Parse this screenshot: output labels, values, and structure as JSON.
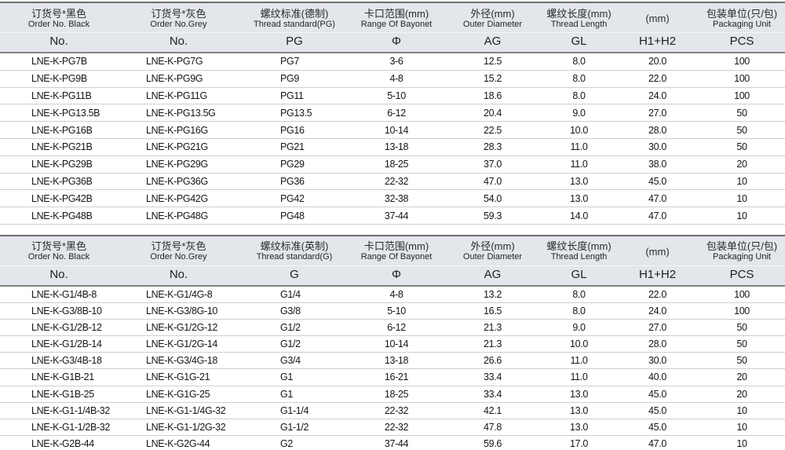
{
  "tables": [
    {
      "name": "pg-thread-table",
      "columns": [
        {
          "cn": "订货号*黑色",
          "en": "Order No. Black",
          "sym": "No."
        },
        {
          "cn": "订货号*灰色",
          "en": "Order No.Grey",
          "sym": "No."
        },
        {
          "cn": "螺纹标准(德制)",
          "en": "Thread standard(PG)",
          "sym": "PG"
        },
        {
          "cn": "卡口范围(mm)",
          "en": "Range Of Bayonet",
          "sym": "Φ"
        },
        {
          "cn": "外径(mm)",
          "en": "Outer Diameter",
          "sym": "AG"
        },
        {
          "cn": "螺纹长度(mm)",
          "en": "Thread Length",
          "sym": "GL"
        },
        {
          "cn": "(mm)",
          "en": "",
          "sym": "H1+H2"
        },
        {
          "cn": "包装单位(只/包)",
          "en": "Packaging Unit",
          "sym": "PCS"
        }
      ],
      "rows": [
        [
          "LNE-K-PG7B",
          "LNE-K-PG7G",
          "PG7",
          "3-6",
          "12.5",
          "8.0",
          "20.0",
          "100"
        ],
        [
          "LNE-K-PG9B",
          "LNE-K-PG9G",
          "PG9",
          "4-8",
          "15.2",
          "8.0",
          "22.0",
          "100"
        ],
        [
          "LNE-K-PG11B",
          "LNE-K-PG11G",
          "PG11",
          "5-10",
          "18.6",
          "8.0",
          "24.0",
          "100"
        ],
        [
          "LNE-K-PG13.5B",
          "LNE-K-PG13.5G",
          "PG13.5",
          "6-12",
          "20.4",
          "9.0",
          "27.0",
          "50"
        ],
        [
          "LNE-K-PG16B",
          "LNE-K-PG16G",
          "PG16",
          "10-14",
          "22.5",
          "10.0",
          "28.0",
          "50"
        ],
        [
          "LNE-K-PG21B",
          "LNE-K-PG21G",
          "PG21",
          "13-18",
          "28.3",
          "11.0",
          "30.0",
          "50"
        ],
        [
          "LNE-K-PG29B",
          "LNE-K-PG29G",
          "PG29",
          "18-25",
          "37.0",
          "11.0",
          "38.0",
          "20"
        ],
        [
          "LNE-K-PG36B",
          "LNE-K-PG36G",
          "PG36",
          "22-32",
          "47.0",
          "13.0",
          "45.0",
          "10"
        ],
        [
          "LNE-K-PG42B",
          "LNE-K-PG42G",
          "PG42",
          "32-38",
          "54.0",
          "13.0",
          "47.0",
          "10"
        ],
        [
          "LNE-K-PG48B",
          "LNE-K-PG48G",
          "PG48",
          "37-44",
          "59.3",
          "14.0",
          "47.0",
          "10"
        ]
      ]
    },
    {
      "name": "g-thread-table",
      "columns": [
        {
          "cn": "订货号*黑色",
          "en": "Order No. Black",
          "sym": "No."
        },
        {
          "cn": "订货号*灰色",
          "en": "Order No.Grey",
          "sym": "No."
        },
        {
          "cn": "螺纹标准(英制)",
          "en": "Thread standard(G)",
          "sym": "G"
        },
        {
          "cn": "卡口范围(mm)",
          "en": "Range Of Bayonet",
          "sym": "Φ"
        },
        {
          "cn": "外径(mm)",
          "en": "Outer Diameter",
          "sym": "AG"
        },
        {
          "cn": "螺纹长度(mm)",
          "en": "Thread Length",
          "sym": "GL"
        },
        {
          "cn": "(mm)",
          "en": "",
          "sym": "H1+H2"
        },
        {
          "cn": "包装单位(只/包)",
          "en": "Packaging Unit",
          "sym": "PCS"
        }
      ],
      "rows": [
        [
          "LNE-K-G1/4B-8",
          "LNE-K-G1/4G-8",
          "G1/4",
          "4-8",
          "13.2",
          "8.0",
          "22.0",
          "100"
        ],
        [
          "LNE-K-G3/8B-10",
          "LNE-K-G3/8G-10",
          "G3/8",
          "5-10",
          "16.5",
          "8.0",
          "24.0",
          "100"
        ],
        [
          "LNE-K-G1/2B-12",
          "LNE-K-G1/2G-12",
          "G1/2",
          "6-12",
          "21.3",
          "9.0",
          "27.0",
          "50"
        ],
        [
          "LNE-K-G1/2B-14",
          "LNE-K-G1/2G-14",
          "G1/2",
          "10-14",
          "21.3",
          "10.0",
          "28.0",
          "50"
        ],
        [
          "LNE-K-G3/4B-18",
          "LNE-K-G3/4G-18",
          "G3/4",
          "13-18",
          "26.6",
          "11.0",
          "30.0",
          "50"
        ],
        [
          "LNE-K-G1B-21",
          "LNE-K-G1G-21",
          "G1",
          "16-21",
          "33.4",
          "11.0",
          "40.0",
          "20"
        ],
        [
          "LNE-K-G1B-25",
          "LNE-K-G1G-25",
          "G1",
          "18-25",
          "33.4",
          "13.0",
          "45.0",
          "20"
        ],
        [
          "LNE-K-G1-1/4B-32",
          "LNE-K-G1-1/4G-32",
          "G1-1/4",
          "22-32",
          "42.1",
          "13.0",
          "45.0",
          "10"
        ],
        [
          "LNE-K-G1-1/2B-32",
          "LNE-K-G1-1/2G-32",
          "G1-1/2",
          "22-32",
          "47.8",
          "13.0",
          "45.0",
          "10"
        ],
        [
          "LNE-K-G2B-44",
          "LNE-K-G2G-44",
          "G2",
          "37-44",
          "59.6",
          "17.0",
          "47.0",
          "10"
        ]
      ]
    }
  ],
  "colors": {
    "header_bg": "#e3e6ea",
    "major_border": "#6d6d6d",
    "header_rule": "#848484",
    "row_line": "#cbcfd3",
    "text": "#161616"
  }
}
